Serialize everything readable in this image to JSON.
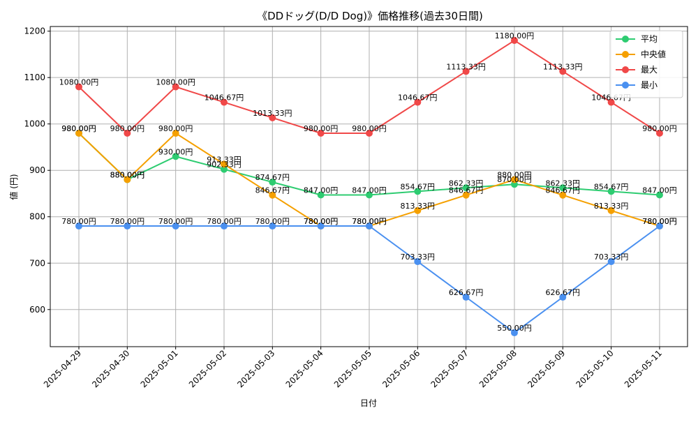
{
  "chart_data": {
    "type": "line",
    "title": "《DDドッグ(D/D Dog)》価格推移(過去30日間)",
    "xlabel": "日付",
    "ylabel": "値 (円)",
    "x": [
      "2025-04-29",
      "2025-04-30",
      "2025-05-01",
      "2025-05-02",
      "2025-05-03",
      "2025-05-04",
      "2025-05-05",
      "2025-05-06",
      "2025-05-07",
      "2025-05-08",
      "2025-05-09",
      "2025-05-10",
      "2025-05-11"
    ],
    "ylim": [
      520,
      1210
    ],
    "yticks": [
      600,
      700,
      800,
      900,
      1000,
      1100,
      1200
    ],
    "grid": true,
    "legend_position": "top-right",
    "series": [
      {
        "name": "平均",
        "color": "#2ecc71",
        "values": [
          980,
          880,
          930,
          902.33,
          874.67,
          847,
          847,
          854.67,
          862.33,
          870,
          862.33,
          854.67,
          847
        ],
        "labels": [
          "980.00円",
          "880.00円",
          "930.00円",
          "902.33円",
          "874.67円",
          "847.00円",
          "847.00円",
          "854.67円",
          "862.33円",
          "870.00円",
          "862.33円",
          "854.67円",
          "847.00円"
        ]
      },
      {
        "name": "中央値",
        "color": "#f5a000",
        "values": [
          980,
          880,
          980,
          913.33,
          846.67,
          780,
          780,
          813.33,
          846.67,
          880,
          846.67,
          813.33,
          780
        ],
        "labels": [
          "980.00円",
          "880.00円",
          "980.00円",
          "913.33円",
          "846.67円",
          "780.00円",
          "780.00円",
          "813.33円",
          "846.67円",
          "880.00円",
          "846.67円",
          "813.33円",
          "780.00円"
        ]
      },
      {
        "name": "最大",
        "color": "#f04848",
        "values": [
          1080,
          980,
          1080,
          1046.67,
          1013.33,
          980,
          980,
          1046.67,
          1113.33,
          1180,
          1113.33,
          1046.67,
          980
        ],
        "labels": [
          "1080.00円",
          "980.00円",
          "1080.00円",
          "1046.67円",
          "1013.33円",
          "980.00円",
          "980.00円",
          "1046.67円",
          "1113.33円",
          "1180.00円",
          "1113.33円",
          "1046.67円",
          "980.00円"
        ]
      },
      {
        "name": "最小",
        "color": "#4a90f0",
        "values": [
          780,
          780,
          780,
          780,
          780,
          780,
          780,
          703.33,
          626.67,
          550,
          626.67,
          703.33,
          780
        ],
        "labels": [
          "780.00円",
          "780.00円",
          "780.00円",
          "780.00円",
          "780.00円",
          "780.00円",
          "780.00円",
          "703.33円",
          "626.67円",
          "550.00円",
          "626.67円",
          "703.33円",
          "780.00円"
        ]
      }
    ]
  }
}
